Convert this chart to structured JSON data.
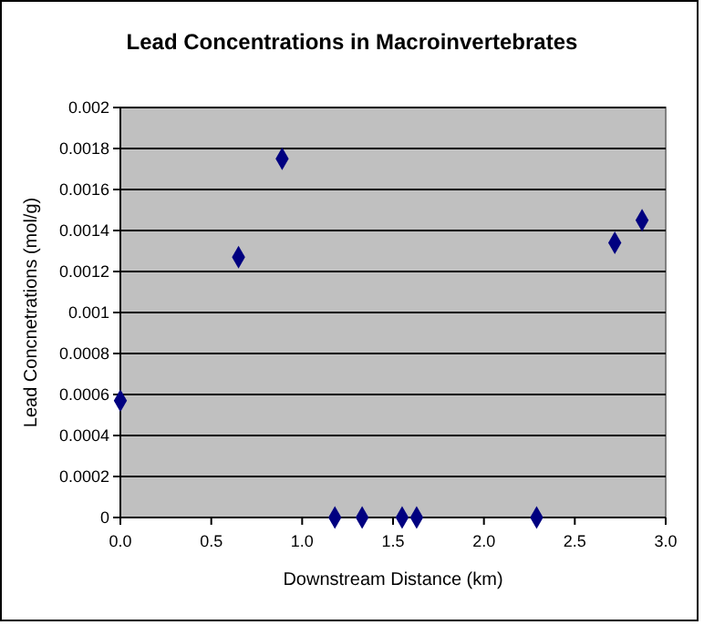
{
  "chart_data": {
    "type": "scatter",
    "title": "Lead Concentrations in Macroinvertebrates",
    "xlabel": "Downstream Distance (km)",
    "ylabel": "Lead Concnetrations (mol/g)",
    "x": [
      0,
      0.65,
      0.89,
      1.18,
      1.33,
      1.55,
      1.63,
      2.29,
      2.72,
      2.87
    ],
    "series": [
      {
        "color": "#000080",
        "values": [
          0.00057,
          0.00127,
          0.00175,
          0,
          0,
          0,
          0,
          0,
          0.00134,
          0.00145
        ]
      }
    ],
    "xlim": [
      0,
      3
    ],
    "xticks": [
      {
        "value": 0,
        "label": "0.0"
      },
      {
        "value": 0.5,
        "label": "0.5"
      },
      {
        "value": 1,
        "label": "1.0"
      },
      {
        "value": 1.5,
        "label": "1.5"
      },
      {
        "value": 2,
        "label": "2.0"
      },
      {
        "value": 2.5,
        "label": "2.5"
      },
      {
        "value": 3,
        "label": "3.0"
      }
    ],
    "ylim": [
      0,
      0.002
    ],
    "yticks": [
      0,
      0.0002,
      0.0004,
      0.0006,
      0.0008,
      0.001,
      0.0012,
      0.0014,
      0.0016,
      0.0018,
      0.002
    ],
    "grid": "y",
    "marker": "diamond"
  }
}
